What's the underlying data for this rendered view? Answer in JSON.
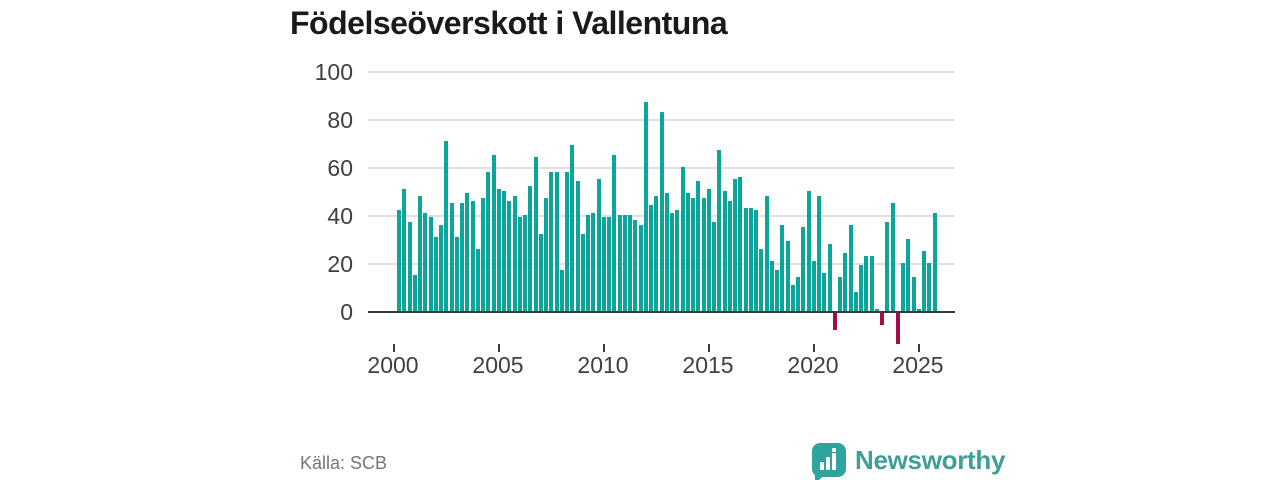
{
  "title": "Födelseöverskott i Vallentuna",
  "source": "Källa: SCB",
  "brand": {
    "name": "Newsworthy"
  },
  "colors": {
    "title": "#1a1a1a",
    "bar_positive": "#0ba59b",
    "bar_negative": "#a50d4a",
    "gridline": "#e0e0e0",
    "axis": "#3a3a3a",
    "tick_label": "#3f3f3f",
    "source_text": "#75757f",
    "logo_icon": "#2fa49c",
    "logo_text": "#3e9e98"
  },
  "chart_data": {
    "type": "bar",
    "title": "Födelseöverskott i Vallentuna",
    "x_unit": "quarter",
    "start": "2000 Q1",
    "end": "2025 Q3",
    "ylim": [
      -20,
      100
    ],
    "yticks": [
      0,
      20,
      40,
      60,
      80,
      100
    ],
    "xticks": [
      2000,
      2005,
      2010,
      2015,
      2020,
      2025
    ],
    "grid": true,
    "legend": "none",
    "values": [
      42,
      51,
      37,
      15,
      48,
      41,
      39,
      31,
      36,
      71,
      45,
      31,
      45,
      49,
      46,
      26,
      47,
      58,
      65,
      51,
      50,
      46,
      48,
      39,
      40,
      52,
      64,
      32,
      47,
      58,
      58,
      17,
      58,
      69,
      54,
      32,
      40,
      41,
      55,
      39,
      39,
      65,
      40,
      40,
      40,
      38,
      36,
      87,
      44,
      48,
      83,
      49,
      41,
      42,
      60,
      49,
      47,
      54,
      47,
      51,
      37,
      67,
      50,
      46,
      55,
      56,
      43,
      43,
      42,
      26,
      48,
      21,
      17,
      36,
      29,
      11,
      14,
      35,
      50,
      21,
      48,
      16,
      28,
      -7,
      14,
      24,
      36,
      8,
      19,
      23,
      23,
      1,
      -5,
      37,
      45,
      -13,
      20,
      30,
      14,
      1,
      25,
      20,
      41
    ]
  }
}
